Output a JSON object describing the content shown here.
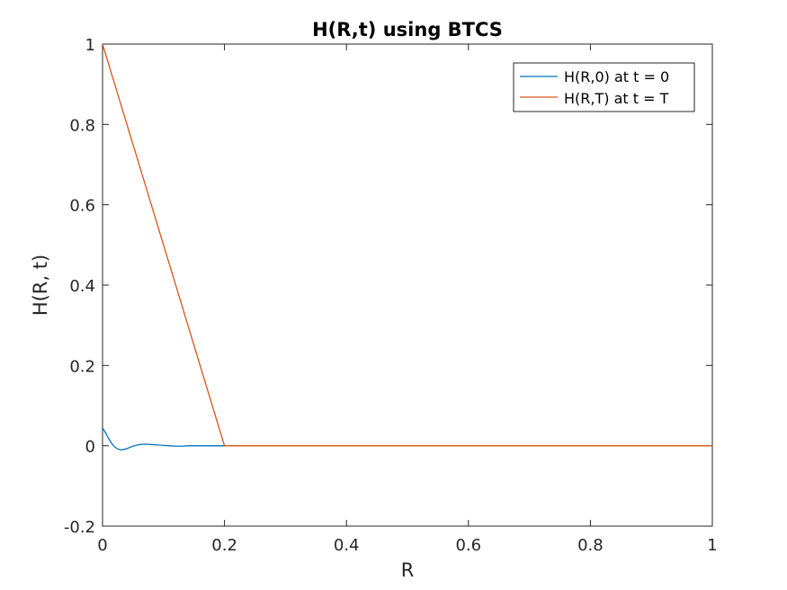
{
  "chart_data": {
    "type": "line",
    "title": "H(R,t) using BTCS",
    "xlabel": "R",
    "ylabel": "H(R, t)",
    "xlim": [
      0,
      1
    ],
    "ylim": [
      -0.2,
      1
    ],
    "xticks": [
      0,
      0.2,
      0.4,
      0.6,
      0.8,
      1
    ],
    "xtick_labels": [
      "0",
      "0.2",
      "0.4",
      "0.6",
      "0.8",
      "1"
    ],
    "yticks": [
      -0.2,
      0,
      0.2,
      0.4,
      0.6,
      0.8,
      1
    ],
    "ytick_labels": [
      "-0.2",
      "0",
      "0.2",
      "0.4",
      "0.6",
      "0.8",
      "1"
    ],
    "grid": false,
    "legend_position": "top-right",
    "series": [
      {
        "name": "H(R,0) at t = 0",
        "color": "#0072BD",
        "x": [
          0,
          0.005,
          0.01,
          0.015,
          0.02,
          0.025,
          0.03,
          0.035,
          0.04,
          0.045,
          0.05,
          0.06,
          0.07,
          0.08,
          0.09,
          0.1,
          0.11,
          0.12,
          0.13,
          0.14,
          0.15,
          0.16,
          0.17,
          0.18,
          0.19,
          0.2
        ],
        "y": [
          0.045,
          0.032,
          0.018,
          0.006,
          -0.003,
          -0.008,
          -0.01,
          -0.009,
          -0.007,
          -0.004,
          -0.001,
          0.003,
          0.004,
          0.003,
          0.002,
          0.001,
          0.0,
          -0.001,
          -0.001,
          0.0,
          0.0,
          0.0,
          0.0,
          0.0,
          0.0,
          0.0
        ]
      },
      {
        "name": "H(R,T) at t = T",
        "color": "#D95319",
        "x": [
          0,
          0.2,
          1
        ],
        "y": [
          1,
          0,
          0
        ]
      }
    ]
  }
}
